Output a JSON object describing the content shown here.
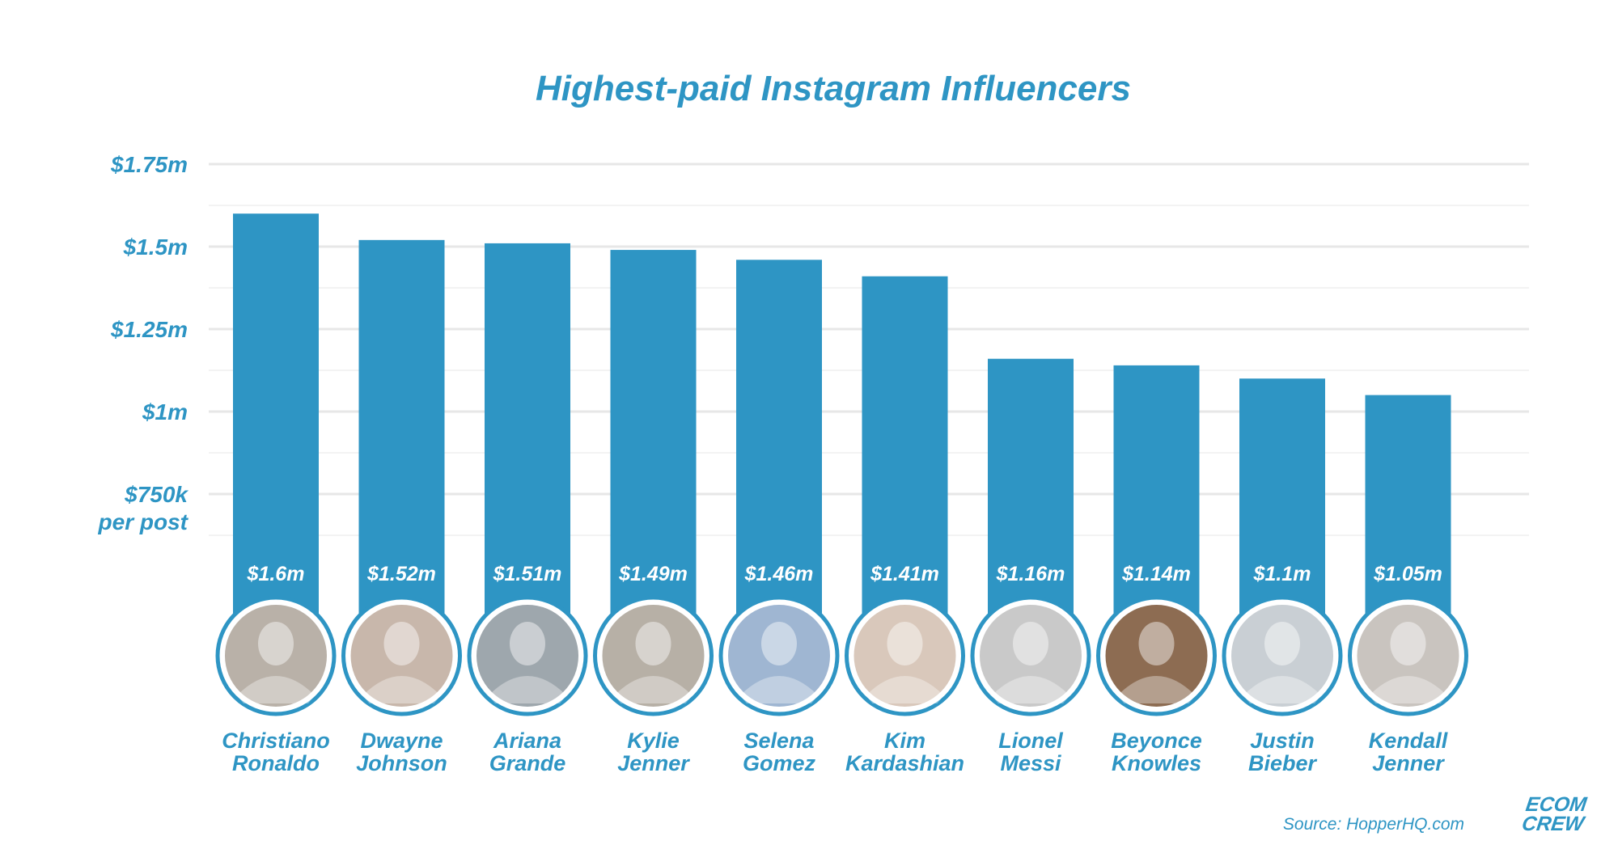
{
  "chart_data": {
    "type": "bar",
    "title": "Highest-paid Instagram Influencers",
    "ylabel": "",
    "y_ticks": [
      {
        "value": 1.75,
        "label": "$1.75m"
      },
      {
        "value": 1.5,
        "label": "$1.5m"
      },
      {
        "value": 1.25,
        "label": "$1.25m"
      },
      {
        "value": 1.0,
        "label": "$1m"
      },
      {
        "value": 0.75,
        "label": "$750k",
        "sublabel": "per post"
      }
    ],
    "ylim": [
      0.5,
      1.75
    ],
    "grid": true,
    "bar_color": "#2e95c4",
    "series": [
      {
        "values": [
          1.6,
          1.52,
          1.51,
          1.49,
          1.46,
          1.41,
          1.16,
          1.14,
          1.1,
          1.05
        ],
        "labels": [
          "$1.6m",
          "$1.52m",
          "$1.51m",
          "$1.49m",
          "$1.46m",
          "$1.41m",
          "$1.16m",
          "$1.14m",
          "$1.1m",
          "$1.05m"
        ]
      }
    ],
    "categories": [
      {
        "first": "Christiano",
        "last": "Ronaldo",
        "icon": "ronaldo-photo"
      },
      {
        "first": "Dwayne",
        "last": "Johnson",
        "icon": "dwayne-johnson-photo"
      },
      {
        "first": "Ariana",
        "last": "Grande",
        "icon": "ariana-grande-photo"
      },
      {
        "first": "Kylie",
        "last": "Jenner",
        "icon": "kylie-jenner-photo"
      },
      {
        "first": "Selena",
        "last": "Gomez",
        "icon": "selena-gomez-photo"
      },
      {
        "first": "Kim",
        "last": "Kardashian",
        "icon": "kim-kardashian-photo"
      },
      {
        "first": "Lionel",
        "last": "Messi",
        "icon": "lionel-messi-photo"
      },
      {
        "first": "Beyonce",
        "last": "Knowles",
        "icon": "beyonce-knowles-photo"
      },
      {
        "first": "Justin",
        "last": "Bieber",
        "icon": "justin-bieber-photo"
      },
      {
        "first": "Kendall",
        "last": "Jenner",
        "icon": "kendall-jenner-photo"
      }
    ],
    "source": "Source: HopperHQ.com"
  },
  "brand": {
    "line1": "ECOM",
    "line2": "CREW"
  }
}
